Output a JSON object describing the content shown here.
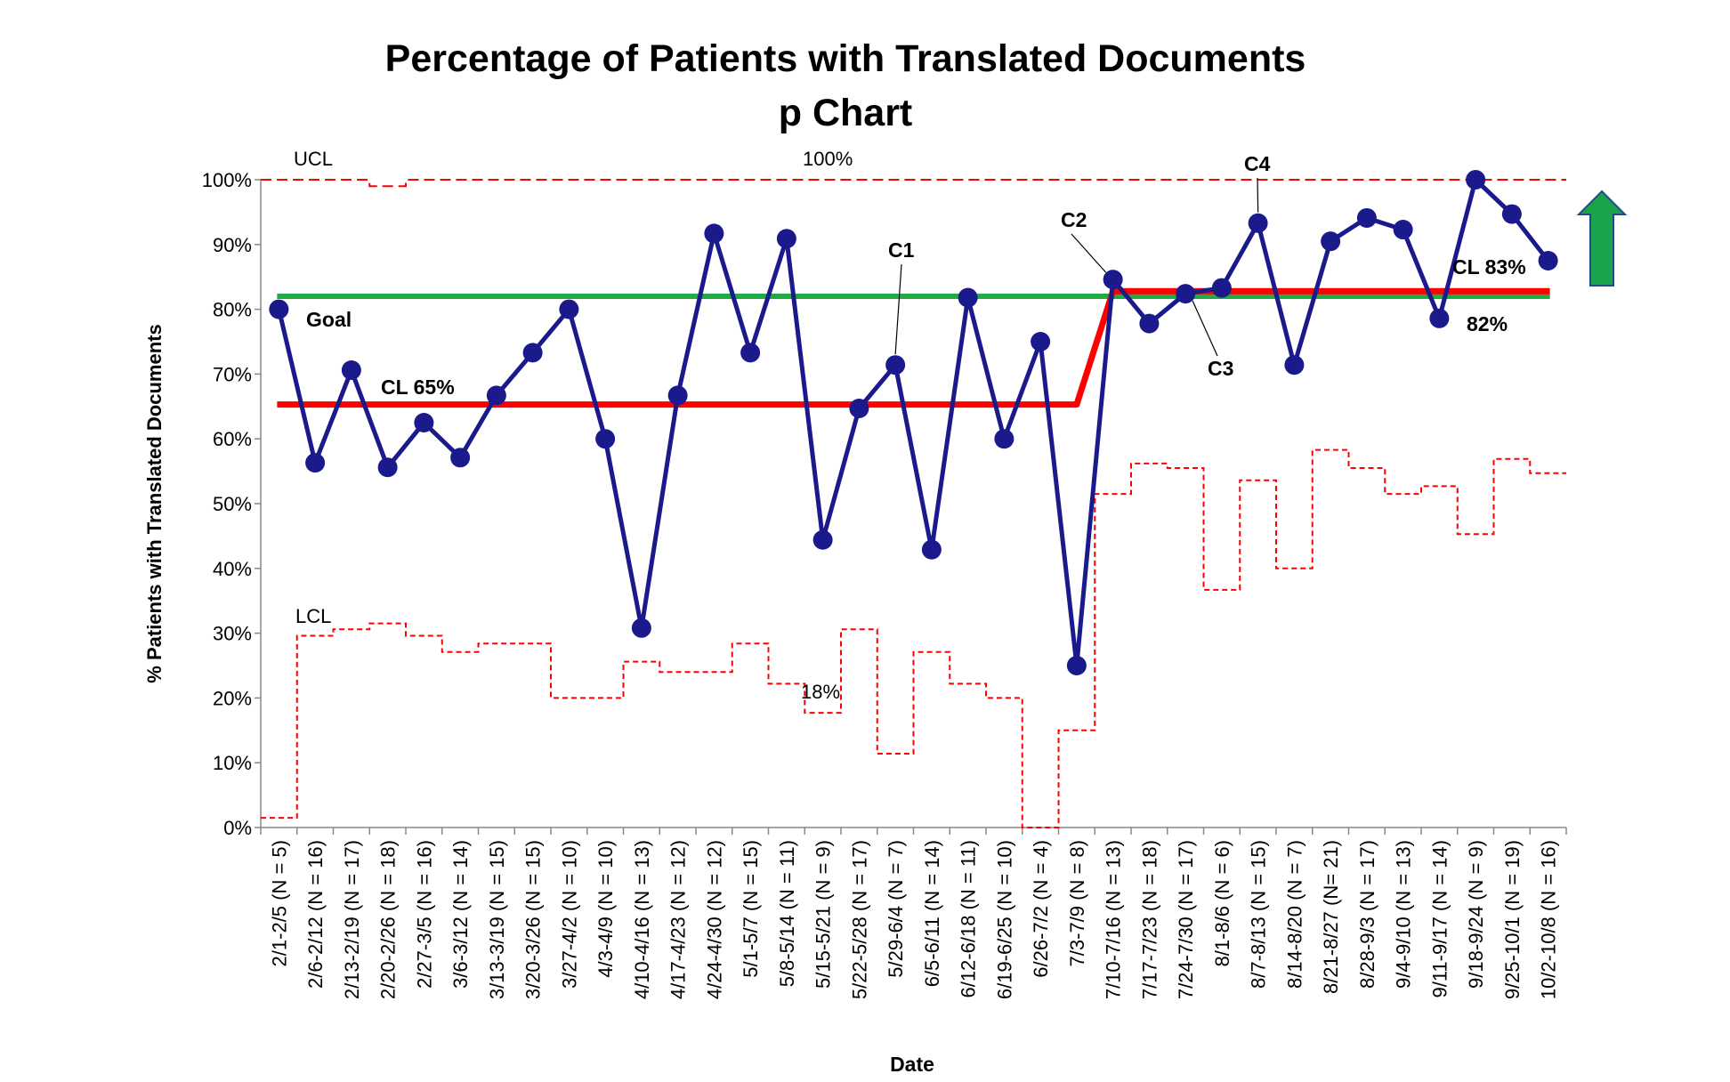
{
  "chart_data": {
    "type": "line",
    "title": "Percentage of Patients with Translated Documents",
    "subtitle": "p Chart",
    "xlabel": "Date",
    "ylabel": "% Patients with Translated Documents",
    "ylim": [
      0,
      100
    ],
    "yticks": [
      "0%",
      "10%",
      "20%",
      "30%",
      "40%",
      "50%",
      "60%",
      "70%",
      "80%",
      "90%",
      "100%"
    ],
    "categories": [
      "2/1-2/5 (N = 5)",
      "2/6-2/12 (N = 16)",
      "2/13-2/19 (N = 17)",
      "2/20-2/26 (N = 18)",
      "2/27-3/5 (N = 16)",
      "3/6-3/12 (N = 14)",
      "3/13-3/19 (N = 15)",
      "3/20-3/26 (N = 15)",
      "3/27-4/2 (N = 10)",
      "4/3-4/9 (N = 10)",
      "4/10-4/16 (N = 13)",
      "4/17-4/23 (N = 12)",
      "4/24-4/30 (N = 12)",
      "5/1-5/7 (N = 15)",
      "5/8-5/14 (N = 11)",
      "5/15-5/21 (N = 9)",
      "5/22-5/28 (N = 17)",
      "5/29-6/4 (N = 7)",
      "6/5-6/11 (N = 14)",
      "6/12-6/18 (N = 11)",
      "6/19-6/25 (N = 10)",
      "6/26-7/2 (N = 4)",
      "7/3-7/9 (N = 8)",
      "7/10-7/16 (N = 13)",
      "7/17-7/23 (N = 18)",
      "7/24-7/30 (N = 17)",
      "8/1-8/6 (N = 6)",
      "8/7-8/13 (N = 15)",
      "8/14-8/20 (N = 7)",
      "8/21-8/27 (N= 21)",
      "8/28-9/3 (N = 17)",
      "9/4-9/10 (N = 13)",
      "9/11-9/17 (N = 14)",
      "9/18-9/24 (N = 9)",
      "9/25-10/1 (N = 19)",
      "10/2-10/8 (N = 16)"
    ],
    "series": [
      {
        "role": "data",
        "color": "#1a1a8c",
        "values": [
          80,
          56.3,
          70.6,
          55.6,
          62.5,
          57.1,
          66.7,
          73.3,
          80,
          60,
          30.8,
          66.7,
          91.7,
          73.3,
          90.9,
          44.4,
          64.7,
          71.4,
          42.9,
          81.8,
          60,
          75,
          25,
          84.6,
          77.8,
          82.4,
          83.3,
          93.3,
          71.4,
          90.5,
          94.1,
          92.3,
          78.6,
          100,
          94.7,
          87.5
        ]
      },
      {
        "role": "ucl",
        "color": "#ff0000",
        "values": [
          100,
          100,
          100,
          99,
          100,
          100,
          100,
          100,
          100,
          100,
          100,
          100,
          100,
          100,
          100,
          100,
          100,
          100,
          100,
          100,
          100,
          100,
          100,
          100,
          100,
          100,
          100,
          100,
          100,
          100,
          100,
          100,
          100,
          100,
          100,
          100
        ]
      },
      {
        "role": "lcl",
        "color": "#ff0000",
        "values": [
          1.5,
          29.6,
          30.6,
          31.5,
          29.6,
          27.1,
          28.4,
          28.4,
          20,
          20,
          25.6,
          24,
          24,
          28.4,
          22.2,
          17.7,
          30.6,
          11.4,
          27.1,
          22.2,
          20,
          0,
          15,
          51.5,
          56.2,
          55.5,
          36.7,
          53.6,
          40,
          58.3,
          55.5,
          51.5,
          52.7,
          45.3,
          56.9,
          54.7
        ]
      },
      {
        "role": "center",
        "color": "#ff0000",
        "values": [
          65.3,
          65.3,
          65.3,
          65.3,
          65.3,
          65.3,
          65.3,
          65.3,
          65.3,
          65.3,
          65.3,
          65.3,
          65.3,
          65.3,
          65.3,
          65.3,
          65.3,
          65.3,
          65.3,
          65.3,
          65.3,
          65.3,
          65.3,
          82.8,
          82.8,
          82.8,
          82.8,
          82.8,
          82.8,
          82.8,
          82.8,
          82.8,
          82.8,
          82.8,
          82.8,
          82.8
        ]
      },
      {
        "role": "goal",
        "color": "#22aa44",
        "values": [
          82,
          82,
          82,
          82,
          82,
          82,
          82,
          82,
          82,
          82,
          82,
          82,
          82,
          82,
          82,
          82,
          82,
          82,
          82,
          82,
          82,
          82,
          82,
          82,
          82,
          82,
          82,
          82,
          82,
          82,
          82,
          82,
          82,
          82,
          82,
          82
        ]
      }
    ],
    "grid": false,
    "legend": "none",
    "annotations": {
      "ucl": "UCL",
      "ucl_value": "100%",
      "lcl": "LCL",
      "lcl_value": "18%",
      "goal": "Goal",
      "cl1": "CL  65%",
      "cl2": "CL 83%",
      "goal_value": "82%",
      "c1": "C1",
      "c2": "C2",
      "c3": "C3",
      "c4": "C4"
    },
    "arrow_color": "#1aa34a"
  }
}
